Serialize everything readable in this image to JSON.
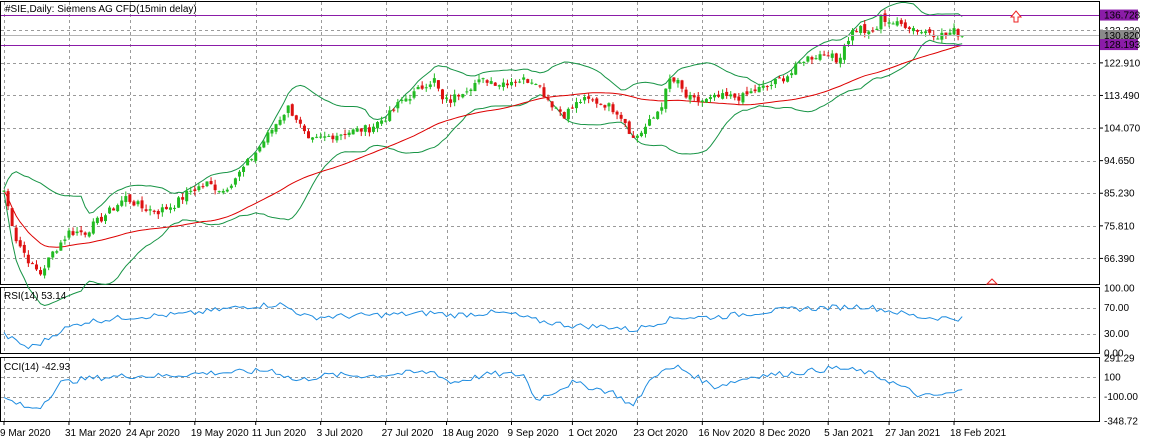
{
  "main": {
    "title": "#SIE,Daily:  Siemens AG CFD(15min delay)",
    "y_ticks": [
      "132.330",
      "122.910",
      "113.490",
      "104.070",
      "94.650",
      "85.230",
      "75.810",
      "66.390"
    ],
    "price_labels": [
      {
        "text": "136.728",
        "bg": "#8B1CA8",
        "value": 136.728
      },
      {
        "text": "130.820",
        "bg": "#8a8a8a",
        "value": 130.82
      },
      {
        "text": "128.193",
        "bg": "#8B1CA8",
        "value": 128.193
      }
    ]
  },
  "rsi": {
    "title": "RSI(14) 53.14",
    "y_ticks": [
      "100.00",
      "70.00",
      "30.00",
      "0.00"
    ]
  },
  "cci": {
    "title": "CCI(14) -42.93",
    "y_ticks": [
      "291.29",
      "100",
      "-100.00",
      "-348.72"
    ]
  },
  "x_labels": [
    "9 Mar 2020",
    "31 Mar 2020",
    "24 Apr 2020",
    "19 May 2020",
    "11 Jun 2020",
    "3 Jul 2020",
    "27 Jul 2020",
    "18 Aug 2020",
    "9 Sep 2020",
    "1 Oct 2020",
    "23 Oct 2020",
    "16 Nov 2020",
    "8 Dec 2020",
    "5 Jan 2021",
    "27 Jan 2021",
    "18 Feb 2021"
  ],
  "colors": {
    "bull": "#22bb22",
    "bear": "#dd1111",
    "ma": "#dd0000",
    "bands": "#179445",
    "osc": "#1e8ce0",
    "hline": "#8B1CA8",
    "grid": "#9a9a9a",
    "arrow": "#ee2222"
  },
  "chart_data": [
    {
      "type": "candlestick",
      "title": "#SIE,Daily:  Siemens AG CFD(15min delay)",
      "ylim": [
        59.0,
        140.5
      ],
      "x_range": [
        "9 Mar 2020",
        "22 Feb 2021"
      ],
      "horizontal_lines": [
        136.728,
        128.193
      ],
      "current_price": 130.82,
      "close_anchors": [
        [
          0,
          86
        ],
        [
          3,
          72
        ],
        [
          7,
          64
        ],
        [
          9,
          62
        ],
        [
          12,
          68
        ],
        [
          16,
          74
        ],
        [
          20,
          74
        ],
        [
          23,
          77
        ],
        [
          26,
          80
        ],
        [
          30,
          84
        ],
        [
          34,
          81
        ],
        [
          38,
          80
        ],
        [
          42,
          82
        ],
        [
          46,
          86
        ],
        [
          50,
          88
        ],
        [
          54,
          86
        ],
        [
          58,
          91
        ],
        [
          62,
          97
        ],
        [
          65,
          102
        ],
        [
          68,
          107
        ],
        [
          70,
          110
        ],
        [
          72,
          107
        ],
        [
          75,
          100
        ],
        [
          78,
          101
        ],
        [
          81,
          102
        ],
        [
          85,
          103
        ],
        [
          90,
          104
        ],
        [
          95,
          108
        ],
        [
          98,
          112
        ],
        [
          101,
          114
        ],
        [
          104,
          117
        ],
        [
          106,
          118
        ],
        [
          108,
          112
        ],
        [
          110,
          112
        ],
        [
          113,
          115
        ],
        [
          116,
          117
        ],
        [
          119,
          118
        ],
        [
          122,
          117
        ],
        [
          126,
          118
        ],
        [
          128,
          118
        ],
        [
          131,
          118
        ],
        [
          133,
          114
        ],
        [
          135,
          111
        ],
        [
          138,
          108
        ],
        [
          140,
          110
        ],
        [
          142,
          112
        ],
        [
          145,
          112
        ],
        [
          148,
          111
        ],
        [
          151,
          109
        ],
        [
          153,
          106
        ],
        [
          155,
          101
        ],
        [
          157,
          103
        ],
        [
          160,
          107
        ],
        [
          162,
          111
        ],
        [
          164,
          118
        ],
        [
          166,
          117
        ],
        [
          168,
          113
        ],
        [
          170,
          112
        ],
        [
          173,
          112
        ],
        [
          176,
          113
        ],
        [
          179,
          113
        ],
        [
          182,
          113
        ],
        [
          185,
          115
        ],
        [
          188,
          116
        ],
        [
          191,
          118
        ],
        [
          194,
          120
        ],
        [
          197,
          124
        ],
        [
          200,
          125
        ],
        [
          203,
          126
        ],
        [
          205,
          123
        ],
        [
          207,
          128
        ],
        [
          209,
          132
        ],
        [
          211,
          133
        ],
        [
          213,
          131
        ],
        [
          215,
          133
        ],
        [
          216,
          136
        ],
        [
          218,
          135
        ],
        [
          220,
          134
        ],
        [
          222,
          134
        ],
        [
          224,
          133
        ],
        [
          226,
          132
        ],
        [
          228,
          132
        ],
        [
          230,
          131
        ],
        [
          232,
          131
        ],
        [
          234,
          132
        ],
        [
          236,
          131
        ]
      ],
      "series": [
        {
          "name": "Bollinger Bands",
          "color": "#179445"
        },
        {
          "name": "Moving Average",
          "color": "#dd0000"
        }
      ]
    },
    {
      "type": "line",
      "title": "RSI(14) 53.14",
      "ylim": [
        0,
        100
      ],
      "levels": [
        30,
        70
      ],
      "anchors": [
        [
          0,
          28
        ],
        [
          6,
          8
        ],
        [
          9,
          15
        ],
        [
          14,
          35
        ],
        [
          20,
          48
        ],
        [
          30,
          55
        ],
        [
          45,
          60
        ],
        [
          60,
          72
        ],
        [
          68,
          75
        ],
        [
          75,
          55
        ],
        [
          90,
          58
        ],
        [
          100,
          60
        ],
        [
          106,
          62
        ],
        [
          110,
          58
        ],
        [
          120,
          62
        ],
        [
          125,
          60
        ],
        [
          131,
          50
        ],
        [
          140,
          42
        ],
        [
          150,
          40
        ],
        [
          155,
          35
        ],
        [
          160,
          45
        ],
        [
          166,
          55
        ],
        [
          175,
          55
        ],
        [
          185,
          62
        ],
        [
          195,
          68
        ],
        [
          205,
          70
        ],
        [
          212,
          72
        ],
        [
          218,
          65
        ],
        [
          226,
          55
        ],
        [
          236,
          53
        ]
      ]
    },
    {
      "type": "line",
      "title": "CCI(14) -42.93",
      "ylim": [
        -348.72,
        291.29
      ],
      "levels": [
        100,
        -100
      ],
      "anchors": [
        [
          0,
          -120
        ],
        [
          6,
          -220
        ],
        [
          9,
          -200
        ],
        [
          14,
          40
        ],
        [
          20,
          80
        ],
        [
          30,
          110
        ],
        [
          40,
          110
        ],
        [
          50,
          140
        ],
        [
          60,
          150
        ],
        [
          66,
          170
        ],
        [
          72,
          60
        ],
        [
          80,
          120
        ],
        [
          90,
          110
        ],
        [
          100,
          140
        ],
        [
          106,
          150
        ],
        [
          110,
          40
        ],
        [
          120,
          130
        ],
        [
          128,
          120
        ],
        [
          131,
          -130
        ],
        [
          134,
          -80
        ],
        [
          140,
          40
        ],
        [
          150,
          -60
        ],
        [
          155,
          -200
        ],
        [
          160,
          120
        ],
        [
          166,
          200
        ],
        [
          175,
          0
        ],
        [
          185,
          110
        ],
        [
          195,
          140
        ],
        [
          205,
          190
        ],
        [
          212,
          150
        ],
        [
          218,
          60
        ],
        [
          226,
          -100
        ],
        [
          232,
          -80
        ],
        [
          236,
          -43
        ]
      ]
    }
  ]
}
